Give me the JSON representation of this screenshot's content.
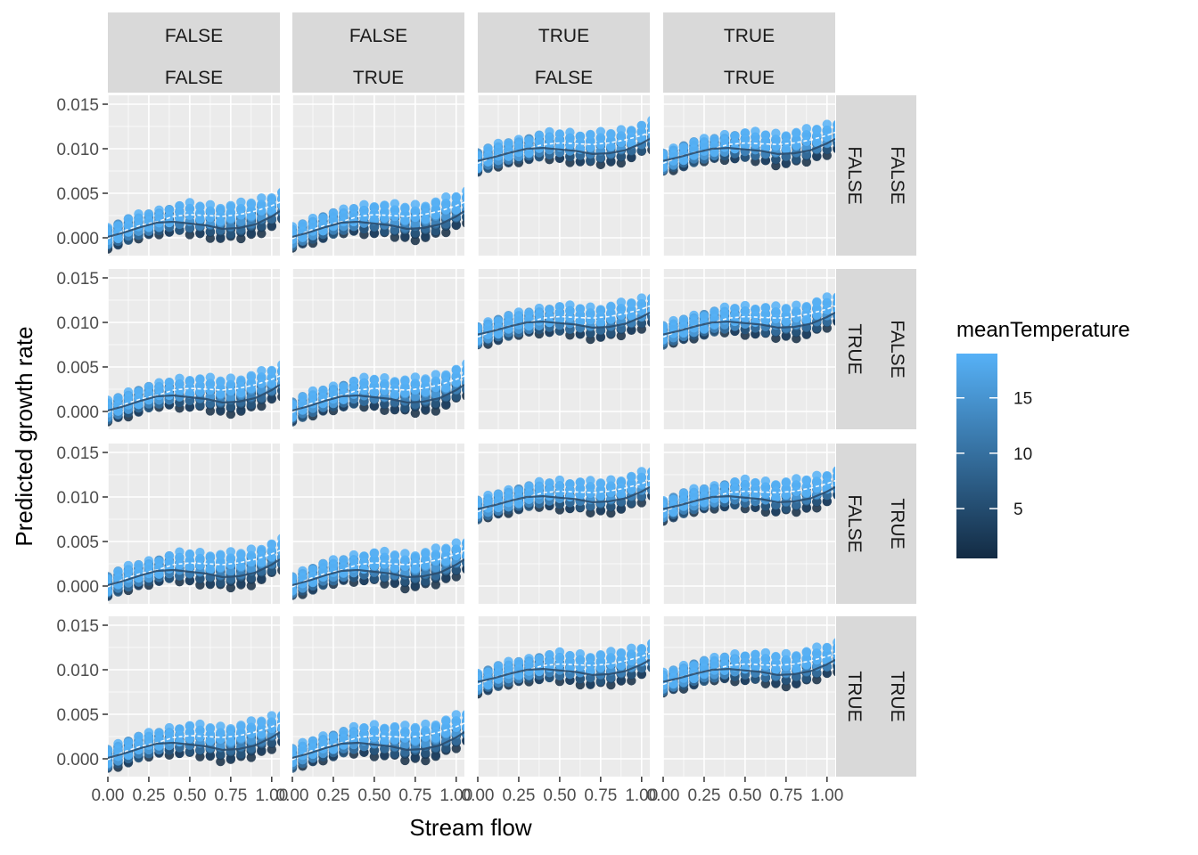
{
  "chart_data": {
    "type": "scatter",
    "xlabel": "Stream flow",
    "ylabel": "Predicted growth rate",
    "xlim": [
      0,
      1.05
    ],
    "ylim": [
      -0.002,
      0.016
    ],
    "x_ticks": [
      0.0,
      0.25,
      0.5,
      0.75,
      1.0
    ],
    "x_tick_labels": [
      "0.00",
      "0.25",
      "0.50",
      "0.75",
      "1.00"
    ],
    "y_ticks": [
      0.0,
      0.005,
      0.01,
      0.015
    ],
    "y_tick_labels": [
      "0.000",
      "0.005",
      "0.010",
      "0.015"
    ],
    "grid": true,
    "facet_columns": [
      {
        "top": "FALSE",
        "bottom": "FALSE"
      },
      {
        "top": "FALSE",
        "bottom": "TRUE"
      },
      {
        "top": "TRUE",
        "bottom": "FALSE"
      },
      {
        "top": "TRUE",
        "bottom": "TRUE"
      }
    ],
    "facet_rows": [
      {
        "outer": "FALSE",
        "inner": "FALSE"
      },
      {
        "outer": "FALSE",
        "inner": "TRUE"
      },
      {
        "outer": "TRUE",
        "inner": "FALSE"
      },
      {
        "outer": "TRUE",
        "inner": "TRUE"
      }
    ],
    "x_values": [
      0.0,
      0.0625,
      0.125,
      0.1875,
      0.25,
      0.3125,
      0.375,
      0.4375,
      0.5,
      0.5625,
      0.625,
      0.6875,
      0.75,
      0.8125,
      0.875,
      0.9375,
      1.0,
      1.0625
    ],
    "series_low_x": [
      0.0,
      0.1,
      0.2,
      0.3,
      0.4,
      0.5,
      0.6,
      0.7,
      0.8,
      0.9,
      1.0,
      1.05
    ],
    "group_offsets": {
      "columns_true": 0.0085,
      "columns_false": 0.0
    },
    "baseline_high": [
      0.0003,
      0.0012,
      0.0018,
      0.0022,
      0.0028,
      0.003,
      0.0029,
      0.0028,
      0.003,
      0.0034,
      0.004,
      0.0044
    ],
    "baseline_low": [
      -0.0003,
      0.0002,
      0.0008,
      0.0013,
      0.0014,
      0.0012,
      0.001,
      0.0006,
      0.0007,
      0.0011,
      0.002,
      0.0026
    ],
    "spread": 0.0012,
    "legend": {
      "title": "meanTemperature",
      "tick_labels": [
        "15",
        "10",
        "5"
      ],
      "tick_values": [
        15,
        10,
        5
      ],
      "range": [
        0.5,
        19
      ],
      "color_low": "#132B43",
      "color_high": "#56B1F7",
      "position": "right"
    },
    "panel_bg": "#EBEBEB",
    "strip_bg": "#D9D9D9"
  }
}
